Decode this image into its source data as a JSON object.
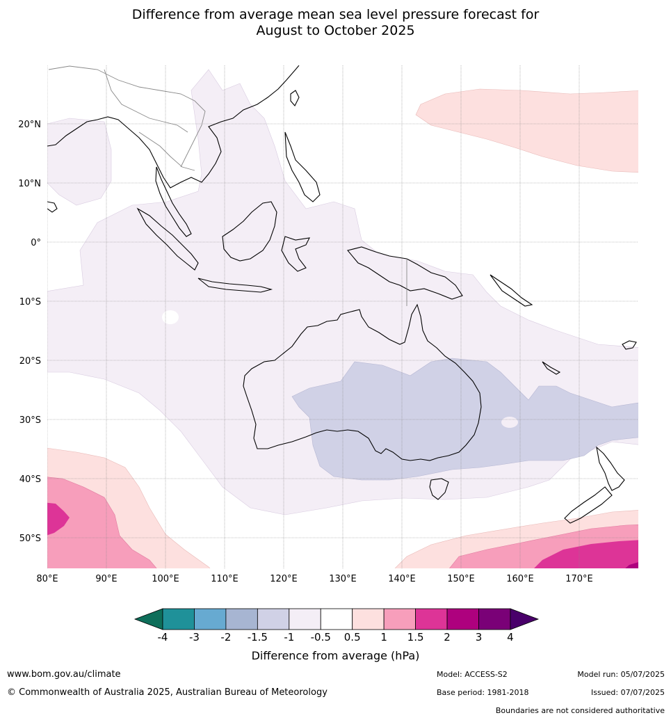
{
  "title_line1": "Difference from average mean sea level pressure forecast for",
  "title_line2": "August to October 2025",
  "map": {
    "lat_labels": [
      "20°N",
      "10°N",
      "0°",
      "10°S",
      "20°S",
      "30°S",
      "40°S",
      "50°S"
    ],
    "lon_labels": [
      "80°E",
      "90°E",
      "100°E",
      "110°E",
      "120°E",
      "130°E",
      "140°E",
      "150°E",
      "160°E",
      "170°E"
    ]
  },
  "colorbar": {
    "title": "Difference from average (hPa)",
    "tick_labels": [
      "-4",
      "-3",
      "-2",
      "-1.5",
      "-1",
      "-0.5",
      "0.5",
      "1",
      "1.5",
      "2",
      "3",
      "4"
    ],
    "colors": [
      "#0e6e5a",
      "#1f9199",
      "#67aad1",
      "#a7b5d2",
      "#d0d1e6",
      "#f4eef6",
      "#ffffff",
      "#fde0df",
      "#f79ebb",
      "#dd3497",
      "#ae017e",
      "#7a0177",
      "#49006a"
    ]
  },
  "footer": {
    "website": "www.bom.gov.au/climate",
    "copyright": "© Commonwealth of Australia 2025, Australian Bureau of Meteorology",
    "model": "Model: ACCESS-S2",
    "base_period": "Base period: 1981-2018",
    "model_run": "Model run: 05/07/2025",
    "issued": "Issued: 07/07/2025",
    "disclaimer": "Boundaries are not considered authoritative"
  }
}
